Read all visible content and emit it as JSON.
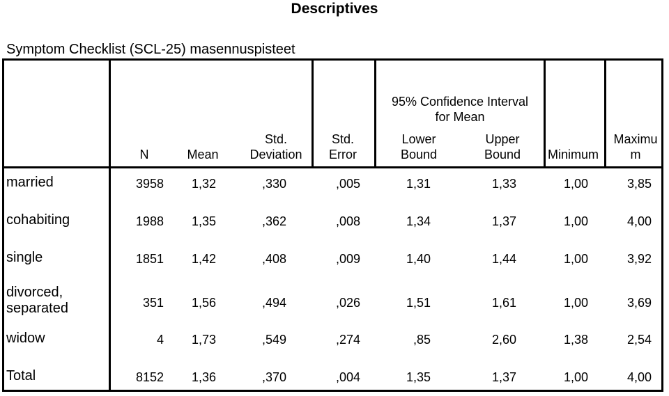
{
  "title": "Descriptives",
  "subtitle": "Symptom Checklist  (SCL-25) masennuspisteet",
  "headers": {
    "n": "N",
    "mean": "Mean",
    "std_dev_1": "Std.",
    "std_dev_2": "Deviation",
    "std_err_1": "Std.",
    "std_err_2": "Error",
    "ci_1": "95% Confidence Interval",
    "ci_2": "for Mean",
    "lower_1": "Lower",
    "lower_2": "Bound",
    "upper_1": "Upper",
    "upper_2": "Bound",
    "minimum": "Minimum",
    "maximum_1": "Maximu",
    "maximum_2": "m"
  },
  "rows": [
    {
      "label1": "married",
      "label2": "",
      "n": "3958",
      "mean": "1,32",
      "sd": ",330",
      "se": ",005",
      "lower": "1,31",
      "upper": "1,33",
      "min": "1,00",
      "max": "3,85"
    },
    {
      "label1": "cohabiting",
      "label2": "",
      "n": "1988",
      "mean": "1,35",
      "sd": ",362",
      "se": ",008",
      "lower": "1,34",
      "upper": "1,37",
      "min": "1,00",
      "max": "4,00"
    },
    {
      "label1": "single",
      "label2": "",
      "n": "1851",
      "mean": "1,42",
      "sd": ",408",
      "se": ",009",
      "lower": "1,40",
      "upper": "1,44",
      "min": "1,00",
      "max": "3,92"
    },
    {
      "label1": "divorced,",
      "label2": "separated",
      "n": "351",
      "mean": "1,56",
      "sd": ",494",
      "se": ",026",
      "lower": "1,51",
      "upper": "1,61",
      "min": "1,00",
      "max": "3,69"
    },
    {
      "label1": "widow",
      "label2": "",
      "n": "4",
      "mean": "1,73",
      "sd": ",549",
      "se": ",274",
      "lower": ",85",
      "upper": "2,60",
      "min": "1,38",
      "max": "2,54"
    },
    {
      "label1": "Total",
      "label2": "",
      "n": "8152",
      "mean": "1,36",
      "sd": ",370",
      "se": ",004",
      "lower": "1,35",
      "upper": "1,37",
      "min": "1,00",
      "max": "4,00"
    }
  ]
}
